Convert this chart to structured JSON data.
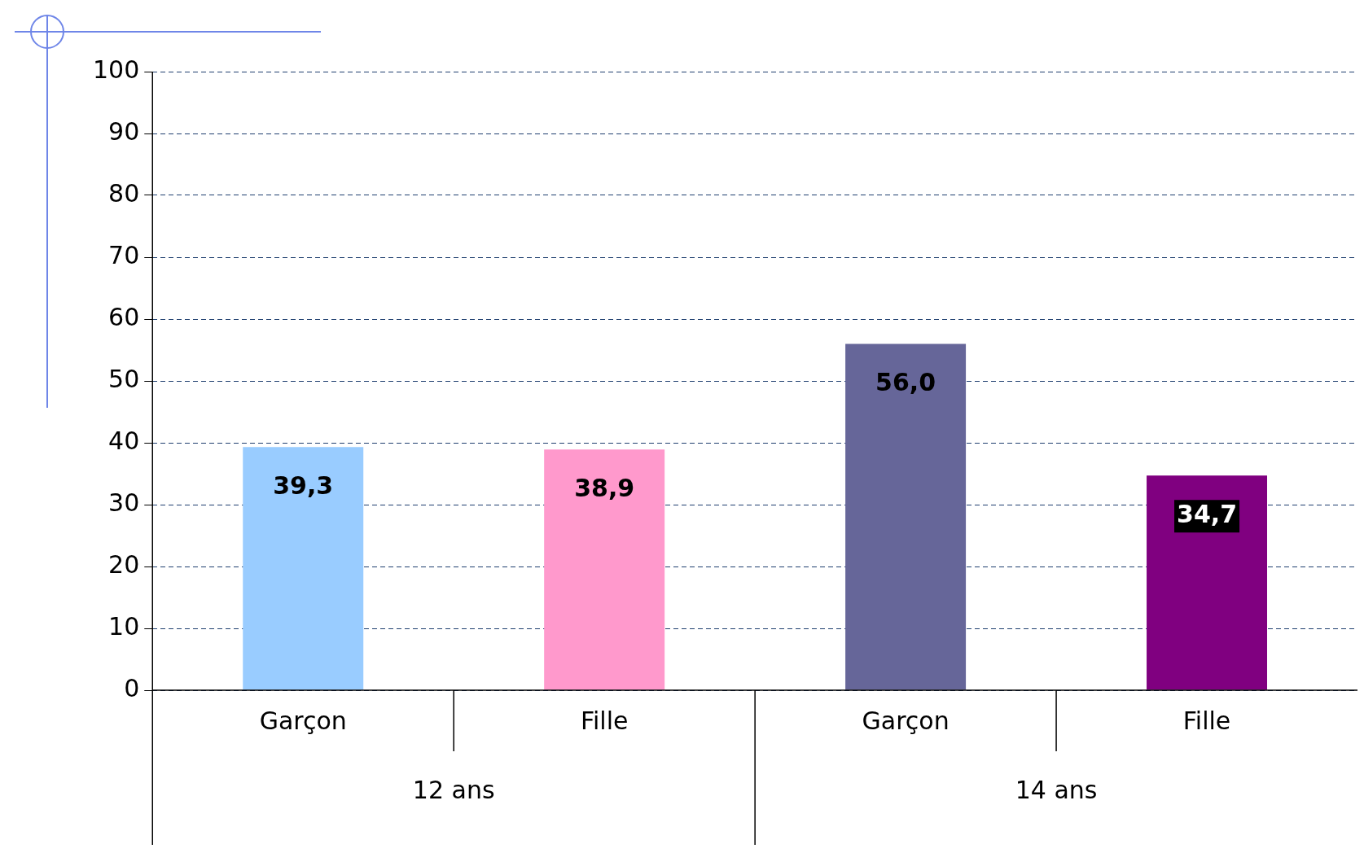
{
  "chart_data": {
    "type": "bar",
    "categories": [
      "Garçon",
      "Fille",
      "Garçon",
      "Fille"
    ],
    "values": [
      39.3,
      38.9,
      56.0,
      34.7
    ],
    "colors": [
      "#99ccff",
      "#ff99cc",
      "#666699",
      "#800080"
    ],
    "value_labels": [
      "39,3",
      "38,9",
      "56,0",
      "34,7"
    ],
    "ylim": [
      0,
      100
    ],
    "yticks": [
      0,
      10,
      20,
      30,
      40,
      50,
      60,
      70,
      80,
      90,
      100
    ],
    "grid": "y",
    "legend": false,
    "annotations": [
      "12 ans",
      "14 ans"
    ]
  }
}
